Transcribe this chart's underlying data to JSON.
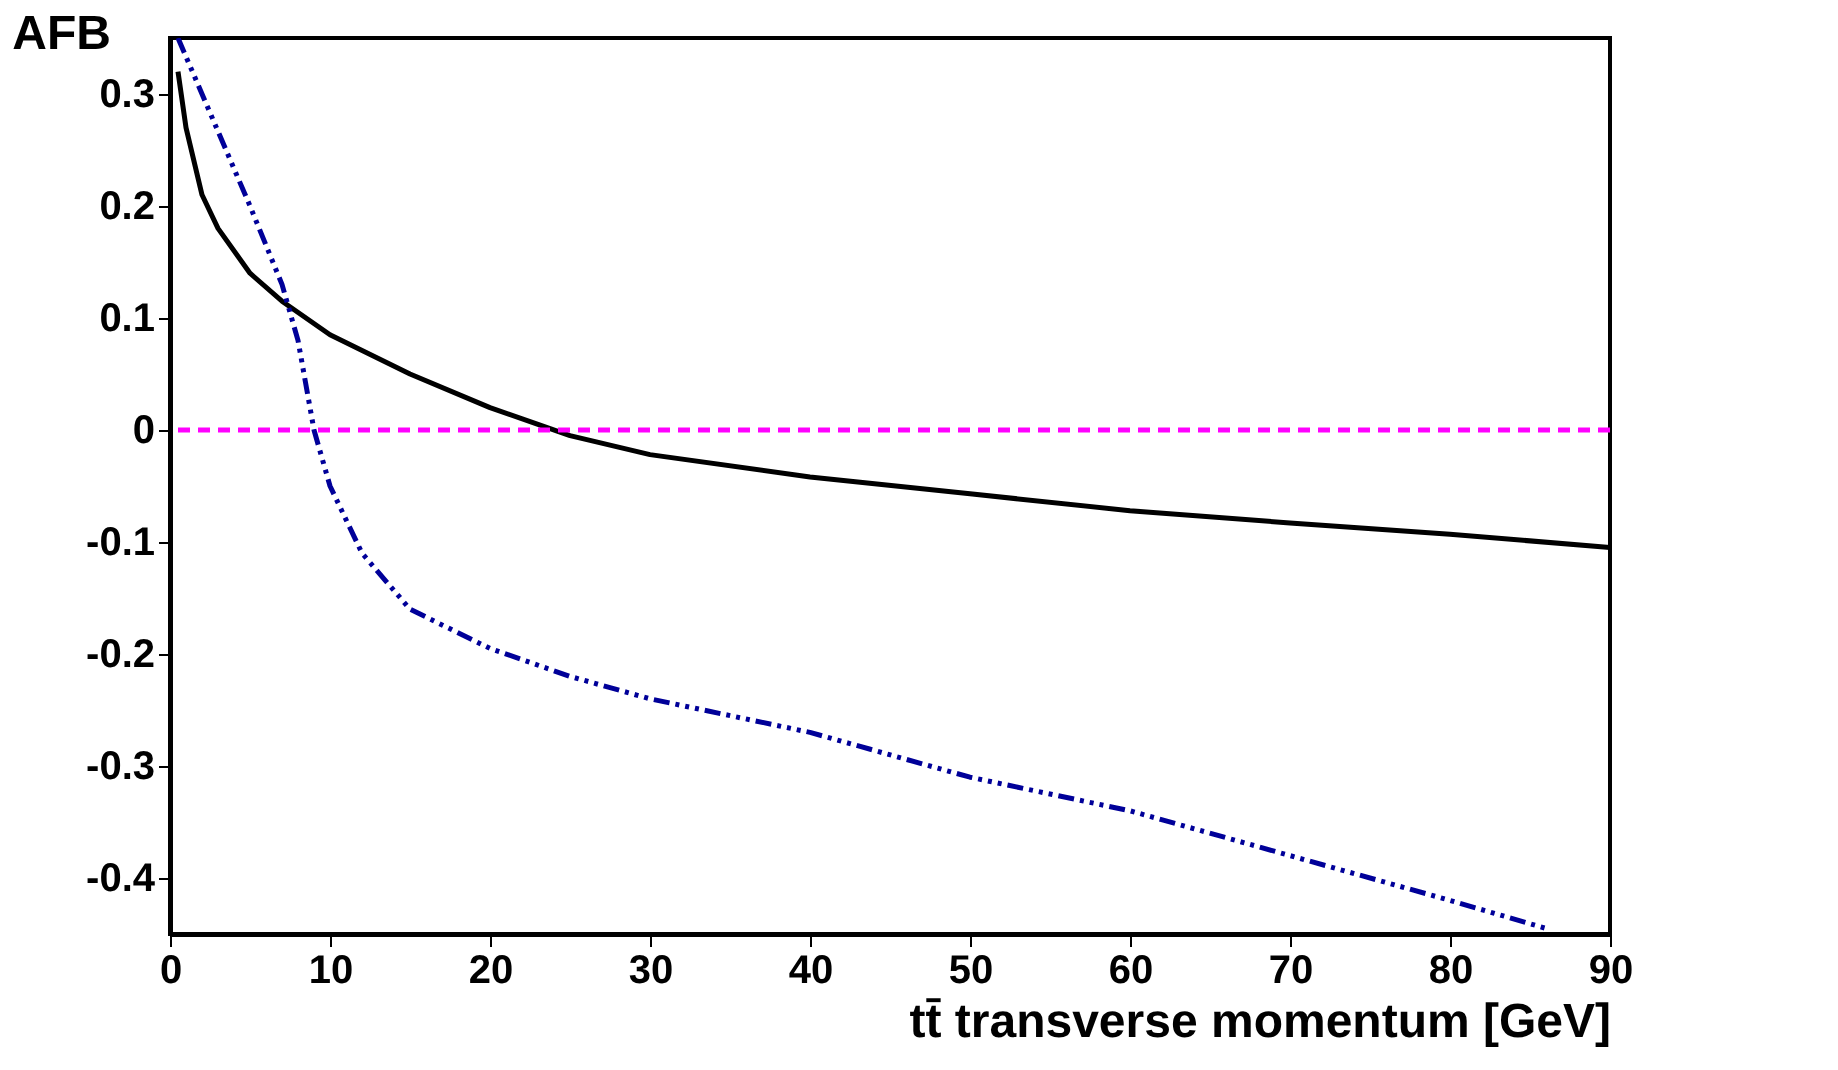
{
  "chart_data": {
    "type": "line",
    "xlabel": "tt̄ transverse momentum [GeV]",
    "ylabel": "AFB",
    "xlim": [
      0,
      90
    ],
    "ylim": [
      -0.45,
      0.35
    ],
    "xticks": [
      0,
      10,
      20,
      30,
      40,
      50,
      60,
      70,
      80,
      90
    ],
    "yticks": [
      -0.4,
      -0.3,
      -0.2,
      -0.1,
      0,
      0.1,
      0.2,
      0.3
    ],
    "grid": false,
    "series": [
      {
        "color": "#000000",
        "line_style": "solid",
        "x": [
          0.5,
          1,
          2,
          3,
          5,
          7,
          10,
          15,
          20,
          23,
          25,
          30,
          40,
          50,
          60,
          70,
          80,
          90
        ],
        "values": [
          0.32,
          0.27,
          0.21,
          0.18,
          0.14,
          0.115,
          0.085,
          0.05,
          0.02,
          0.005,
          -0.005,
          -0.022,
          -0.042,
          -0.057,
          -0.072,
          -0.083,
          -0.093,
          -0.105
        ]
      },
      {
        "color": "#ff00ff",
        "line_style": "dashed",
        "x": [
          0.5,
          90
        ],
        "values": [
          0,
          0
        ]
      },
      {
        "color": "#000099",
        "line_style": "dotted",
        "x": [
          0.5,
          2,
          5,
          7,
          8,
          9,
          10,
          12,
          15,
          20,
          25,
          30,
          40,
          50,
          55,
          60,
          70,
          80,
          86
        ],
        "values": [
          0.35,
          0.3,
          0.2,
          0.13,
          0.08,
          0.0,
          -0.05,
          -0.11,
          -0.16,
          -0.195,
          -0.22,
          -0.24,
          -0.27,
          -0.31,
          -0.325,
          -0.34,
          -0.38,
          -0.42,
          -0.445
        ]
      }
    ]
  }
}
